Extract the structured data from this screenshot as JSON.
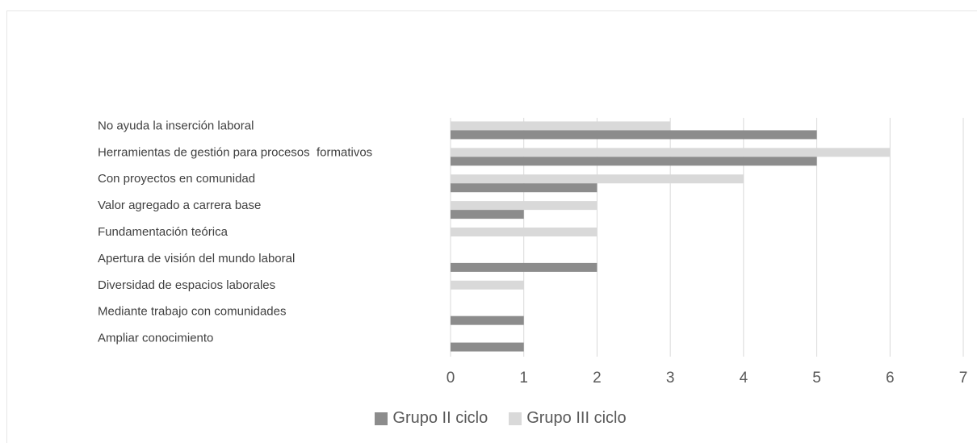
{
  "chart_data": {
    "type": "bar",
    "orientation": "horizontal",
    "categories": [
      "No ayuda la inserción laboral",
      "Herramientas de gestión para procesos  formativos",
      "Con proyectos en comunidad",
      "Valor agregado a carrera base",
      "Fundamentación teórica",
      "Apertura de visión del mundo laboral",
      "Diversidad de espacios laborales",
      "Mediante trabajo con comunidades",
      "Ampliar conocimiento"
    ],
    "series": [
      {
        "name": "Grupo II ciclo",
        "color": "#8c8c8c",
        "values": [
          5,
          5,
          2,
          1,
          0,
          2,
          0,
          1,
          1
        ]
      },
      {
        "name": "Grupo III ciclo",
        "color": "#d9d9d9",
        "values": [
          3,
          6,
          4,
          2,
          2,
          0,
          1,
          0,
          0
        ]
      }
    ],
    "xlim": [
      0,
      7
    ],
    "xticks": [
      "0",
      "1",
      "2",
      "3",
      "4",
      "5",
      "6",
      "7"
    ],
    "grid": true,
    "legend_position": "bottom"
  }
}
